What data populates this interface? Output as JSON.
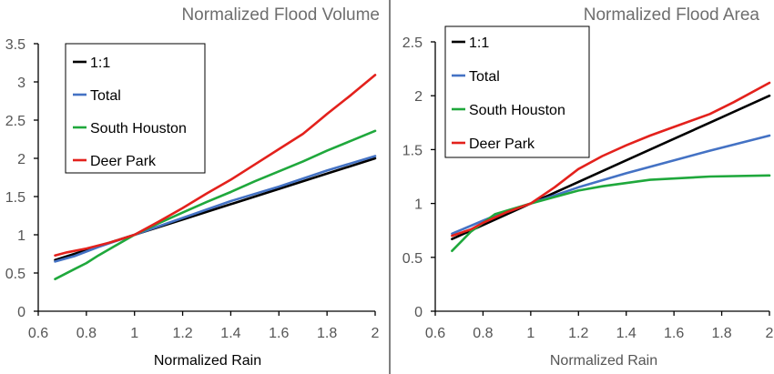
{
  "colors": {
    "one_to_one": "#000000",
    "total": "#4472c4",
    "south_houston": "#1fa83c",
    "deer_park": "#e3211c"
  },
  "chart_data": [
    {
      "type": "line",
      "title": "Normalized  Flood  Volume",
      "xlabel": "Normalized Rain",
      "ylabel": "",
      "xlim": [
        0.6,
        2
      ],
      "ylim": [
        0,
        3.5
      ],
      "x_ticks": [
        "0.6",
        "0.8",
        "1",
        "1.2",
        "1.4",
        "1.6",
        "1.8",
        "2"
      ],
      "y_ticks": [
        "0",
        "0.5",
        "1",
        "1.5",
        "2",
        "2.5",
        "3",
        "3.5"
      ],
      "grid": false,
      "legend_position": "top-left",
      "series": [
        {
          "name": "1:1",
          "color_key": "one_to_one",
          "x": [
            0.67,
            1.0,
            1.2,
            1.4,
            1.6,
            1.8,
            2.0
          ],
          "y": [
            0.67,
            1.0,
            1.2,
            1.4,
            1.6,
            1.8,
            2.0
          ]
        },
        {
          "name": "Total",
          "color_key": "total",
          "x": [
            0.67,
            0.75,
            0.85,
            1.0,
            1.2,
            1.4,
            1.6,
            1.8,
            2.0
          ],
          "y": [
            0.65,
            0.72,
            0.84,
            1.0,
            1.22,
            1.44,
            1.63,
            1.84,
            2.03
          ]
        },
        {
          "name": "South Houston",
          "color_key": "south_houston",
          "x": [
            0.67,
            0.75,
            0.8,
            0.85,
            0.9,
            1.0,
            1.1,
            1.2,
            1.3,
            1.4,
            1.5,
            1.6,
            1.7,
            1.8,
            1.9,
            2.0
          ],
          "y": [
            0.42,
            0.55,
            0.63,
            0.73,
            0.82,
            1.0,
            1.15,
            1.29,
            1.43,
            1.56,
            1.7,
            1.83,
            1.96,
            2.1,
            2.23,
            2.36
          ]
        },
        {
          "name": "Deer Park",
          "color_key": "deer_park",
          "x": [
            0.67,
            0.72,
            0.8,
            0.9,
            1.0,
            1.1,
            1.2,
            1.3,
            1.4,
            1.5,
            1.6,
            1.7,
            1.75,
            1.8,
            1.9,
            2.0
          ],
          "y": [
            0.73,
            0.77,
            0.82,
            0.9,
            1.0,
            1.17,
            1.35,
            1.54,
            1.72,
            1.92,
            2.12,
            2.32,
            2.45,
            2.58,
            2.83,
            3.09
          ]
        }
      ]
    },
    {
      "type": "line",
      "title": "Normalized  Flood  Area",
      "xlabel": "Normalized Rain",
      "ylabel": "",
      "xlim": [
        0.6,
        2
      ],
      "ylim": [
        0,
        2.5
      ],
      "x_ticks": [
        "0.6",
        "0.8",
        "1",
        "1.2",
        "1.4",
        "1.6",
        "1.8",
        "2"
      ],
      "y_ticks": [
        "0",
        "0.5",
        "1",
        "1.5",
        "2",
        "2.5"
      ],
      "grid": false,
      "legend_position": "top-left",
      "series": [
        {
          "name": "1:1",
          "color_key": "one_to_one",
          "x": [
            0.67,
            1.0,
            1.2,
            1.4,
            1.6,
            1.8,
            2.0
          ],
          "y": [
            0.67,
            1.0,
            1.2,
            1.4,
            1.6,
            1.8,
            2.0
          ]
        },
        {
          "name": "Total",
          "color_key": "total",
          "x": [
            0.67,
            0.8,
            0.9,
            1.0,
            1.2,
            1.4,
            1.6,
            1.75,
            2.0
          ],
          "y": [
            0.72,
            0.84,
            0.93,
            1.0,
            1.15,
            1.28,
            1.4,
            1.49,
            1.63
          ]
        },
        {
          "name": "South Houston",
          "color_key": "south_houston",
          "x": [
            0.67,
            0.75,
            0.85,
            1.0,
            1.2,
            1.3,
            1.5,
            1.75,
            2.0
          ],
          "y": [
            0.56,
            0.74,
            0.9,
            1.0,
            1.12,
            1.16,
            1.22,
            1.25,
            1.26
          ]
        },
        {
          "name": "Deer Park",
          "color_key": "deer_park",
          "x": [
            0.67,
            0.75,
            0.8,
            0.9,
            1.0,
            1.1,
            1.2,
            1.3,
            1.4,
            1.5,
            1.6,
            1.75,
            1.85,
            2.0
          ],
          "y": [
            0.7,
            0.76,
            0.82,
            0.92,
            1.0,
            1.15,
            1.32,
            1.44,
            1.54,
            1.63,
            1.71,
            1.83,
            1.94,
            2.12
          ]
        }
      ]
    }
  ]
}
